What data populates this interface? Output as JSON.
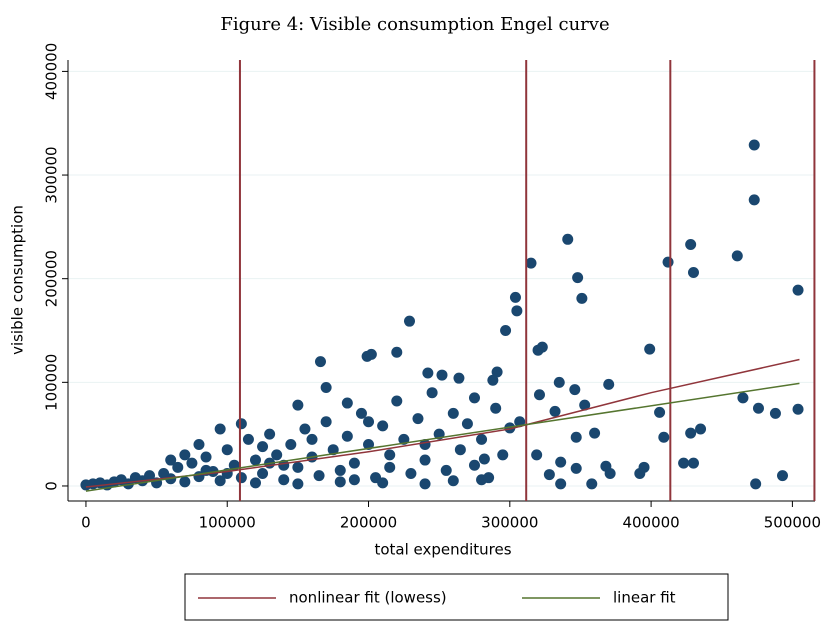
{
  "chart_data": {
    "type": "scatter",
    "title": "Figure 4: Visible consumption Engel curve",
    "x_label": "total expenditures",
    "y_label": "visible consumption",
    "xlim": [
      -12700,
      516000
    ],
    "ylim": [
      -14500,
      411000
    ],
    "xticks": [
      0,
      100000,
      200000,
      300000,
      400000,
      500000
    ],
    "yticks": [
      0,
      100000,
      200000,
      300000,
      400000
    ],
    "grid": true,
    "legend": "bottom",
    "vlines": {
      "color": "#90353b",
      "x": [
        109000,
        311600,
        413600,
        515600
      ]
    },
    "series": [
      {
        "type": "scatter",
        "color": "#1a476f",
        "x": [
          473000,
          473000,
          428000,
          430000,
          412000,
          461000,
          504000,
          504000,
          341000,
          348000,
          351000,
          315000,
          304000,
          305000,
          297000,
          229000,
          399000,
          320000,
          323000,
          166000,
          199000,
          202000,
          220000,
          465000,
          476000,
          488000,
          474000,
          493000,
          435000,
          428000,
          423000,
          430000,
          406000,
          409000,
          395000,
          392000,
          371000,
          368000,
          370000,
          360000,
          347000,
          336000,
          358000,
          347000,
          336000,
          328000,
          319000,
          321000,
          335000,
          346000,
          353000,
          332000,
          291000,
          288000,
          300000,
          307000,
          282000,
          280000,
          264000,
          242000,
          252000,
          0,
          5000,
          10000,
          15000,
          20000,
          25000,
          30000,
          35000,
          40000,
          45000,
          50000,
          55000,
          60000,
          65000,
          70000,
          75000,
          80000,
          85000,
          90000,
          95000,
          100000,
          105000,
          110000,
          115000,
          120000,
          125000,
          130000,
          135000,
          140000,
          145000,
          150000,
          155000,
          160000,
          165000,
          170000,
          175000,
          180000,
          185000,
          190000,
          195000,
          200000,
          205000,
          210000,
          215000,
          220000,
          225000,
          230000,
          235000,
          240000,
          245000,
          250000,
          255000,
          260000,
          265000,
          270000,
          275000,
          280000,
          285000,
          290000,
          295000,
          60000,
          80000,
          95000,
          110000,
          125000,
          140000,
          150000,
          170000,
          185000,
          200000,
          215000,
          240000,
          260000,
          275000,
          120000,
          150000,
          180000,
          210000,
          240000,
          100000,
          130000,
          160000,
          190000,
          70000,
          85000
        ],
        "values": [
          329000,
          276000,
          233000,
          206000,
          216000,
          222000,
          189000,
          74000,
          238000,
          201000,
          181000,
          215000,
          182000,
          169000,
          150000,
          159000,
          132000,
          131000,
          134000,
          120000,
          125000,
          127000,
          129000,
          85000,
          75000,
          70000,
          2000,
          10000,
          55000,
          51000,
          22000,
          22000,
          71000,
          47000,
          18000,
          12000,
          12000,
          19000,
          98000,
          51000,
          47000,
          2000,
          2000,
          17000,
          23000,
          11000,
          30000,
          88000,
          100000,
          93000,
          78000,
          72000,
          110000,
          102000,
          56000,
          62000,
          26000,
          6000,
          104000,
          109000,
          107000,
          1000,
          2000,
          3000,
          1000,
          4000,
          6000,
          2000,
          8000,
          5000,
          10000,
          3000,
          12000,
          7000,
          18000,
          4000,
          22000,
          9000,
          28000,
          14000,
          5000,
          35000,
          20000,
          8000,
          45000,
          25000,
          12000,
          50000,
          30000,
          6000,
          40000,
          18000,
          55000,
          28000,
          10000,
          62000,
          35000,
          15000,
          48000,
          22000,
          70000,
          40000,
          8000,
          58000,
          30000,
          82000,
          45000,
          12000,
          65000,
          25000,
          90000,
          50000,
          15000,
          70000,
          35000,
          60000,
          20000,
          45000,
          8000,
          75000,
          30000,
          25000,
          40000,
          55000,
          60000,
          38000,
          20000,
          78000,
          95000,
          80000,
          62000,
          18000,
          40000,
          5000,
          85000,
          3000,
          2000,
          4000,
          3000,
          2000,
          12000,
          22000,
          45000,
          6000,
          30000,
          15000
        ]
      },
      {
        "type": "line",
        "name": "nonlinear fit (lowess)",
        "color": "#90353b",
        "x": [
          0,
          100000,
          200000,
          300000,
          400000,
          505000
        ],
        "values": [
          -1000,
          14000,
          33000,
          55000,
          90000,
          122000
        ]
      },
      {
        "type": "line",
        "name": "linear fit",
        "color": "#55752f",
        "x": [
          0,
          505000
        ],
        "values": [
          -5000,
          99000
        ]
      }
    ]
  }
}
